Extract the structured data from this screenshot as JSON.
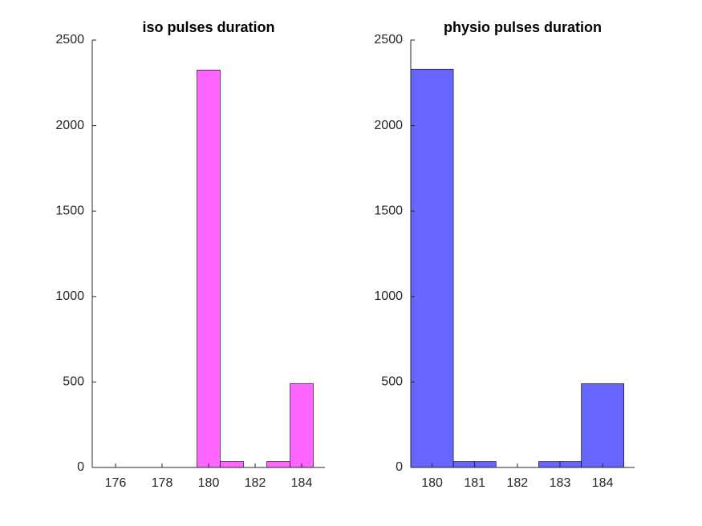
{
  "chart_data": [
    {
      "type": "histogram",
      "title": "iso pulses duration",
      "bins": [
        175.5,
        176.5,
        177.5,
        178.5,
        179.5,
        180.5,
        181.5,
        182.5,
        183.5,
        184.5
      ],
      "values": [
        0,
        0,
        0,
        0,
        2325,
        35,
        0,
        35,
        490
      ],
      "color": "#ff66ff",
      "xlim": [
        175,
        185
      ],
      "xticks": [
        176,
        178,
        180,
        182,
        184
      ],
      "ylim": [
        0,
        2500
      ],
      "yticks": [
        0,
        500,
        1000,
        1500,
        2000,
        2500
      ]
    },
    {
      "type": "histogram",
      "title": "physio pulses duration",
      "bins": [
        179.5,
        180.5,
        181,
        181.5,
        182.5,
        183,
        183.5,
        184.5
      ],
      "values": [
        2330,
        35,
        35,
        0,
        35,
        35,
        490
      ],
      "color": "#6666ff",
      "xlim": [
        179.5,
        184.75
      ],
      "xticks": [
        180,
        181,
        182,
        183,
        184
      ],
      "ylim": [
        0,
        2500
      ],
      "yticks": [
        0,
        500,
        1000,
        1500,
        2000,
        2500
      ]
    }
  ]
}
